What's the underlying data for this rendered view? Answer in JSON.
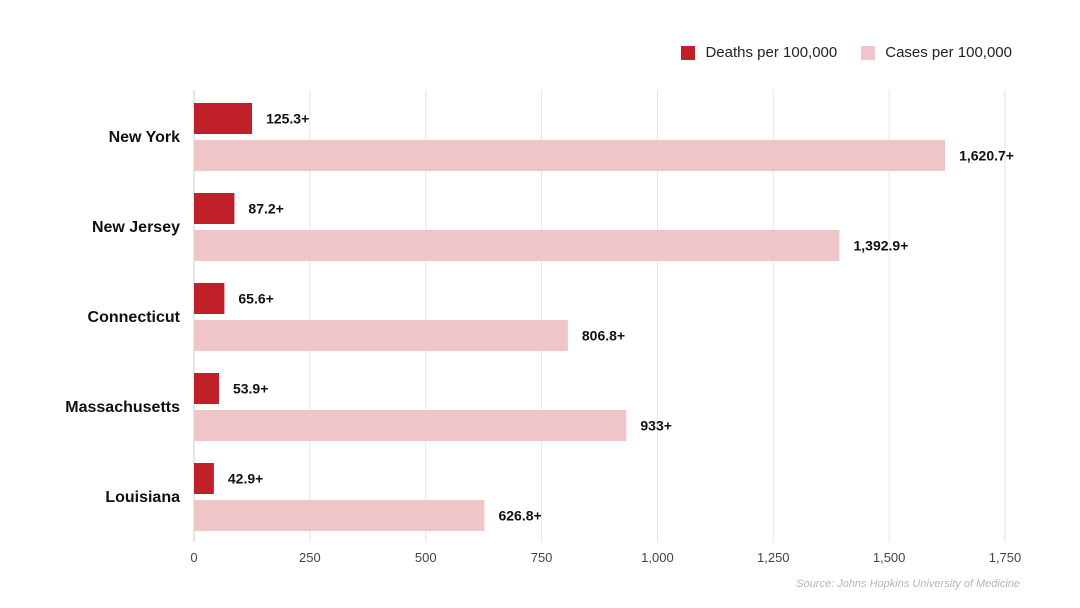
{
  "chart_data": {
    "type": "bar",
    "orientation": "horizontal",
    "categories": [
      "New York",
      "New Jersey",
      "Connecticut",
      "Massachusetts",
      "Louisiana"
    ],
    "series": [
      {
        "name": "Deaths per 100,000",
        "color": "#c0202a",
        "values": [
          125.3,
          87.2,
          65.6,
          53.9,
          42.9
        ],
        "labels": [
          "125.3+",
          "87.2+",
          "65.6+",
          "53.9+",
          "42.9+"
        ]
      },
      {
        "name": "Cases per 100,000",
        "color": "#f0c5c7",
        "values": [
          1620.7,
          1392.9,
          806.8,
          933,
          626.8
        ],
        "labels": [
          "1,620.7+",
          "1,392.9+",
          "806.8+",
          "933+",
          "626.8+"
        ]
      }
    ],
    "xlim": [
      0,
      1750
    ],
    "xticks": [
      0,
      250,
      500,
      750,
      1000,
      1250,
      1500,
      1750
    ],
    "xtick_labels": [
      "0",
      "250",
      "500",
      "750",
      "1,000",
      "1,250",
      "1,500",
      "1,750"
    ],
    "grid": "vertical",
    "legend_position": "top-right"
  },
  "source": "Source: Johns Hopkins University of Medicine"
}
